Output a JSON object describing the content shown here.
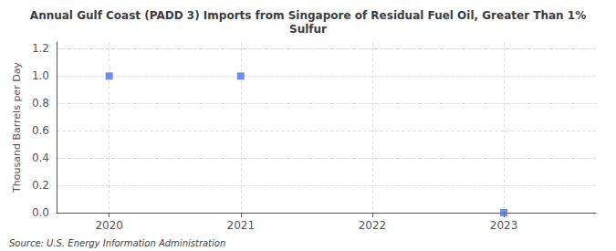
{
  "chart_data": {
    "type": "scatter",
    "title": "Annual Gulf Coast (PADD 3) Imports from Singapore of Residual Fuel Oil, Greater Than 1%\nSulfur",
    "ylabel": "Thousand Barrels per Day",
    "annotations": [
      "Source: U.S. Energy Information Administration"
    ],
    "x": [
      2020,
      2021,
      2023
    ],
    "values": [
      1.0,
      1.0,
      0.0
    ],
    "marker": "square",
    "xlim": [
      2019.6,
      2023.7
    ],
    "ylim": [
      0.0,
      1.25
    ],
    "xticks": [
      2020,
      2021,
      2022,
      2023
    ],
    "yticks": [
      {
        "value": 0.0,
        "label": "0.0"
      },
      0.2,
      0.4,
      0.6,
      0.8,
      {
        "value": 1.0,
        "label": "1.0"
      },
      1.2
    ],
    "grid": true
  }
}
